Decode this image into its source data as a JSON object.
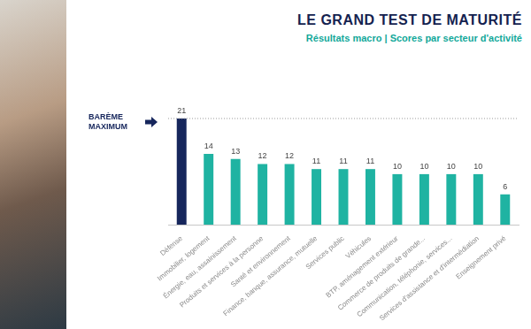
{
  "chart_data": {
    "type": "bar",
    "title": "LE GRAND TEST DE MATURITÉ",
    "subtitle": "Résultats macro | Scores par secteur d'activité",
    "categories": [
      "Défense",
      "Immobilier, logement",
      "Énergie, eau, assainissement",
      "Produits et services à la personne",
      "Santé et environnement",
      "Finance, banque, assurance, mutuelle",
      "Services public",
      "Véhicules",
      "BTP, aménagement extérieur",
      "Commerce de produits de grande...",
      "Communication, téléphonie, services...",
      "Services d'assistance et d'intermédiation",
      "Enseignement privé"
    ],
    "values": [
      21,
      14,
      13,
      12,
      12,
      11,
      11,
      11,
      10,
      10,
      10,
      10,
      6
    ],
    "colors": [
      "#16265c",
      "#1fb3a2",
      "#1fb3a2",
      "#1fb3a2",
      "#1fb3a2",
      "#1fb3a2",
      "#1fb3a2",
      "#1fb3a2",
      "#1fb3a2",
      "#1fb3a2",
      "#1fb3a2",
      "#1fb3a2",
      "#1fb3a2"
    ],
    "ylim": [
      0,
      21
    ],
    "annotations": [
      {
        "text": "BARÈME MAXIMUM",
        "value": 21
      }
    ],
    "grid": false,
    "data_labels": true,
    "tick_labels": "x"
  }
}
